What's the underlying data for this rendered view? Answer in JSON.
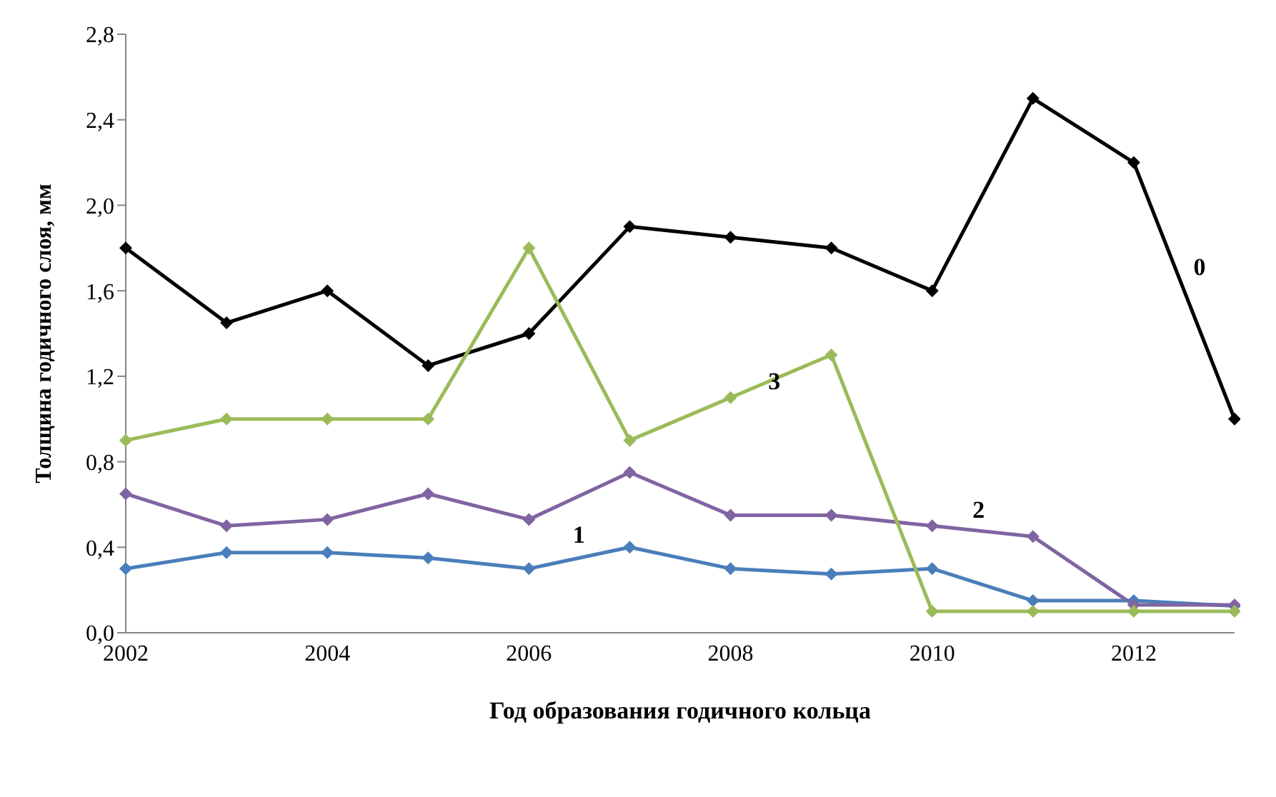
{
  "chart_data": {
    "type": "line",
    "xlabel": "Год образования годичного кольца",
    "ylabel": "Толщина годичного слоя, мм",
    "categories": [
      "2002",
      null,
      "2004",
      null,
      "2006",
      null,
      "2008",
      null,
      "2010",
      null,
      "2012",
      null
    ],
    "series": [
      {
        "name": "0",
        "color": "#000000",
        "values": [
          1.8,
          1.45,
          1.6,
          1.25,
          1.4,
          1.9,
          1.85,
          1.8,
          1.6,
          2.5,
          2.2,
          1.0
        ]
      },
      {
        "name": "1",
        "color": "#4a7ebb",
        "values": [
          0.3,
          0.375,
          0.375,
          0.35,
          0.3,
          0.4,
          0.3,
          0.275,
          0.3,
          0.15,
          0.15,
          0.125
        ]
      },
      {
        "name": "2",
        "color": "#8064a2",
        "values": [
          0.65,
          0.5,
          0.53,
          0.65,
          0.53,
          0.75,
          0.55,
          0.55,
          0.5,
          0.45,
          0.13,
          0.13
        ]
      },
      {
        "name": "3",
        "color": "#9bbb59",
        "values": [
          0.9,
          1.0,
          1.0,
          1.0,
          1.8,
          0.9,
          1.1,
          1.3,
          0.1,
          0.1,
          0.1,
          0.1
        ]
      }
    ],
    "ylim": [
      0,
      2.8
    ],
    "yticks": [
      {
        "value": 0,
        "label": "0,0"
      },
      {
        "value": 0.4,
        "label": "0,4"
      },
      {
        "value": 0.8,
        "label": "0,8"
      },
      {
        "value": 1.2,
        "label": "1,2"
      },
      {
        "value": 1.6,
        "label": "1,6"
      },
      {
        "value": 2.0,
        "label": "2,0"
      },
      {
        "value": 2.4,
        "label": "2,4"
      },
      {
        "value": 2.8,
        "label": "2,8"
      }
    ],
    "grid": false,
    "legend": false,
    "marker": "diamond",
    "line_style": "solid"
  }
}
